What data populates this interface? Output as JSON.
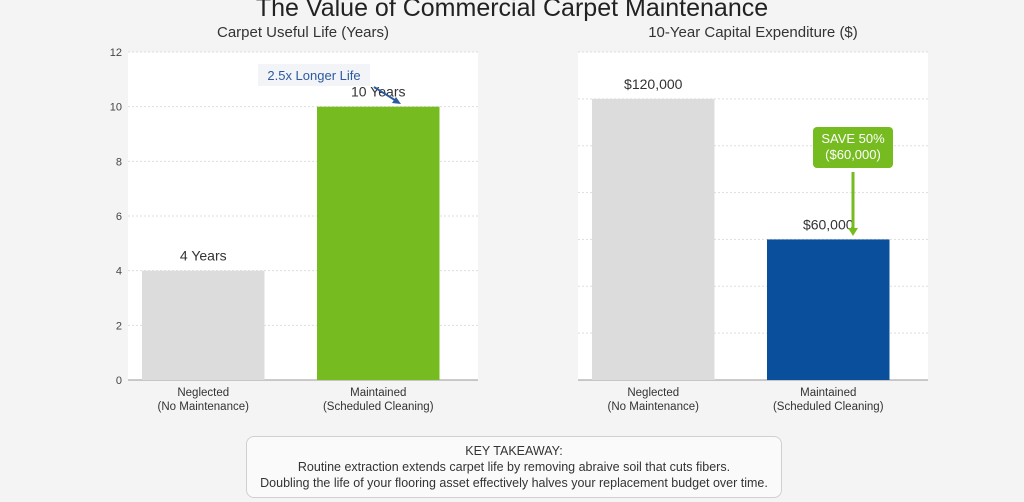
{
  "title": "The Value of Commercial Carpet Maintenance",
  "chart_data": [
    {
      "type": "bar",
      "title": "Carpet Useful Life (Years)",
      "categories": [
        "Neglected\n(No Maintenance)",
        "Maintained\n(Scheduled Cleaning)"
      ],
      "values": [
        4,
        10
      ],
      "data_labels": [
        "4 Years",
        "10 Years"
      ],
      "colors": [
        "#dcdcdc",
        "#76bc21"
      ],
      "ylim": [
        0,
        12
      ],
      "yticks": [
        0,
        2,
        4,
        6,
        8,
        10,
        12
      ],
      "grid": true,
      "annotation": {
        "text": "2.5x Longer Life",
        "color": "#2c5aa0"
      }
    },
    {
      "type": "bar",
      "title": "10-Year Capital Expenditure ($)",
      "categories": [
        "Neglected\n(No Maintenance)",
        "Maintained\n(Scheduled Cleaning)"
      ],
      "values": [
        120000,
        60000
      ],
      "data_labels": [
        "$120,000",
        "$60,000"
      ],
      "colors": [
        "#dcdcdc",
        "#0a4f9c"
      ],
      "ylim": [
        0,
        140000
      ],
      "grid": true,
      "annotation": {
        "lines": [
          "SAVE 50%",
          "($60,000)"
        ],
        "color": "#76bc21"
      }
    }
  ],
  "takeaway": {
    "heading": "KEY TAKEAWAY:",
    "line1": "Routine extraction extends carpet life by removing abraive soil that cuts fibers.",
    "line2": "Doubling the life of your flooring asset effectively halves your replacement budget over time."
  }
}
